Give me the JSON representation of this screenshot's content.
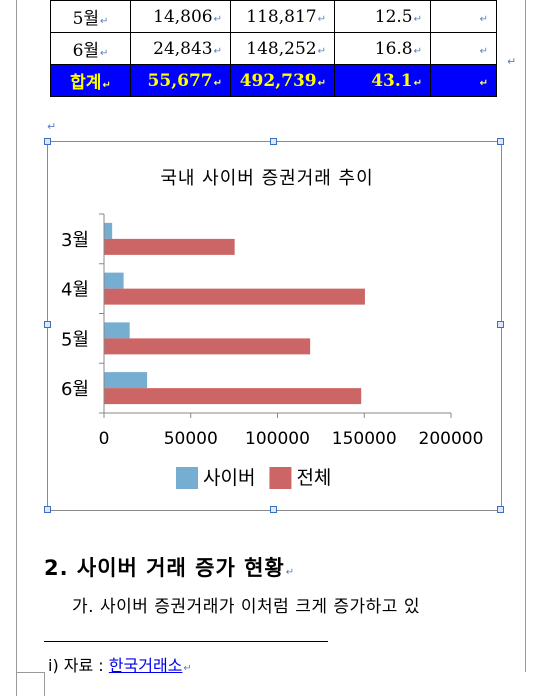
{
  "table": {
    "rows": [
      {
        "month": "5월",
        "cyber": "14,806",
        "total": "118,817",
        "ratio": "12.5",
        "note": ""
      },
      {
        "month": "6월",
        "cyber": "24,843",
        "total": "148,252",
        "ratio": "16.8",
        "note": ""
      }
    ],
    "sum": {
      "label": "합계",
      "cyber": "55,677",
      "total": "492,739",
      "ratio": "43.1",
      "note": ""
    }
  },
  "chart_data": {
    "type": "bar",
    "orientation": "horizontal",
    "title": "국내 사이버 증권거래 추이",
    "categories": [
      "3월",
      "4월",
      "5월",
      "6월"
    ],
    "series": [
      {
        "name": "사이버",
        "values": [
          4700,
          11300,
          14806,
          24843
        ],
        "color": "#75aed0"
      },
      {
        "name": "전체",
        "values": [
          75300,
          150400,
          118817,
          148252
        ],
        "color": "#cc6666"
      }
    ],
    "xlim": [
      0,
      200000
    ],
    "xticks": [
      0,
      50000,
      100000,
      150000,
      200000
    ],
    "xtick_labels": [
      "0",
      "50000",
      "100000",
      "150000",
      "200000"
    ],
    "grid": false,
    "legend_position": "bottom"
  },
  "section": {
    "heading": "2. 사이버 거래 증가 현황",
    "paragraph": "가. 사이버 증권거래가 이처럼 크게 증가하고 있"
  },
  "footnote": {
    "prefix": "i) 자료 : ",
    "link": "한국거래소"
  },
  "marks": {
    "para": "↵"
  }
}
